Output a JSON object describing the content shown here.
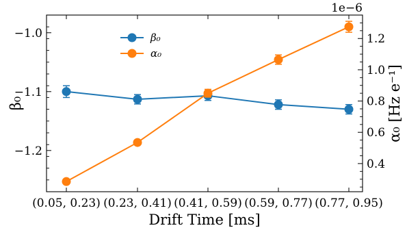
{
  "chart_data": {
    "type": "line",
    "categories": [
      "(0.05, 0.23)",
      "(0.23, 0.41)",
      "(0.41, 0.59)",
      "(0.59, 0.77)",
      "(0.77, 0.95)"
    ],
    "xlabel": "Drift Time [ms]",
    "ylabel_left": "β₀",
    "ylabel_right": "α₀ [Hz e⁻¹]",
    "right_axis_offset_label": "1e−6",
    "ylim_left": [
      -1.27,
      -0.97
    ],
    "ylim_right": [
      2.2e-07,
      1.35e-06
    ],
    "yticks_left": [
      -1.2,
      -1.1,
      -1.0
    ],
    "yticks_left_labels": [
      "−1.2",
      "−1.1",
      "−1.0"
    ],
    "yticks_right": [
      0.4,
      0.6,
      0.8,
      1.0,
      1.2
    ],
    "yticks_right_labels": [
      "0.4",
      "0.6",
      "0.8",
      "1.0",
      "1.2"
    ],
    "legend_position": "upper-left",
    "grid": false,
    "series": [
      {
        "name": "β₀",
        "axis": "left",
        "color": "#1f77b4",
        "values": [
          -1.1,
          -1.113,
          -1.107,
          -1.122,
          -1.13
        ],
        "errors": [
          0.01,
          0.008,
          0.008,
          0.008,
          0.008
        ]
      },
      {
        "name": "α₀",
        "axis": "right",
        "color": "#ff7f0e",
        "values": [
          2.85e-07,
          5.35e-07,
          8.5e-07,
          1.065e-06,
          1.275e-06
        ],
        "errors": [
          8e-09,
          1.5e-08,
          2.5e-08,
          3e-08,
          3.5e-08
        ]
      }
    ]
  }
}
